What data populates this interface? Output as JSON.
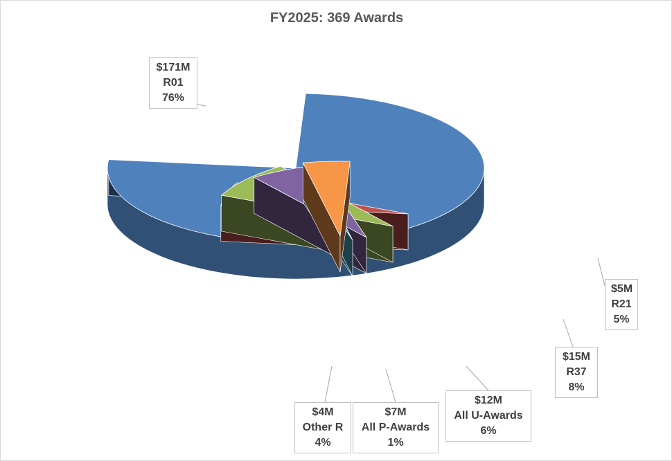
{
  "chart_data": {
    "type": "pie",
    "title": "FY2025: 369 Awards",
    "slices": [
      {
        "amount": "$171M",
        "name": "R01",
        "percent": "76%",
        "value": 76,
        "color": "#4f81bd"
      },
      {
        "amount": "$5M",
        "name": "R21",
        "percent": "5%",
        "value": 5,
        "color": "#c0504d"
      },
      {
        "amount": "$15M",
        "name": "R37",
        "percent": "8%",
        "value": 8,
        "color": "#9bbb59"
      },
      {
        "amount": "$12M",
        "name": "All U-Awards",
        "percent": "6%",
        "value": 6,
        "color": "#8064a2"
      },
      {
        "amount": "$7M",
        "name": "All P-Awards",
        "percent": "1%",
        "value": 1,
        "color": "#4bacc6"
      },
      {
        "amount": "$4M",
        "name": "Other R",
        "percent": "4%",
        "value": 4,
        "color": "#f79646"
      }
    ]
  }
}
